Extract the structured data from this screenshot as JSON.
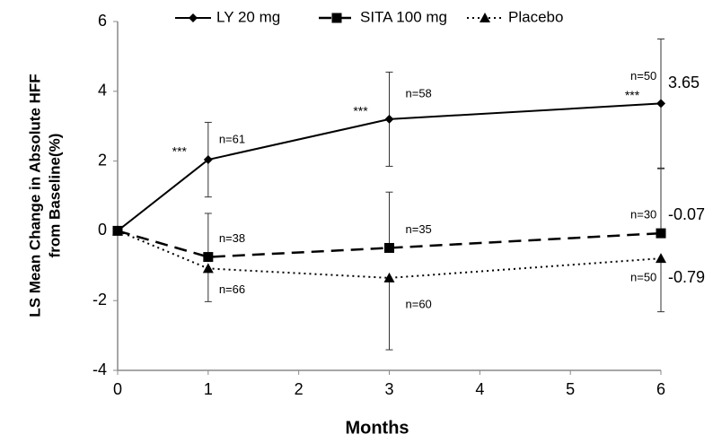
{
  "chart_data": {
    "type": "line",
    "x_label": "Months",
    "y_label": [
      "LS Mean Change in Absolute HFF",
      "from Baseline(%)"
    ],
    "x": [
      0,
      1,
      3,
      6
    ],
    "xlim": [
      0,
      6
    ],
    "xticks": [
      0,
      1,
      2,
      3,
      4,
      5,
      6
    ],
    "ylim": [
      -4,
      6
    ],
    "yticks": [
      -4,
      -2,
      0,
      2,
      4,
      6
    ],
    "grid": false,
    "legend": "top",
    "series": [
      {
        "name": "LY 20 mg",
        "color": "#000000",
        "dash": "solid",
        "marker": "diamond",
        "error_side": "both",
        "values": [
          0,
          2.04,
          3.2,
          3.65
        ],
        "errors": [
          null,
          1.07,
          1.35,
          1.85
        ],
        "n_labels": [
          null,
          "n=61",
          "n=58",
          "n=50"
        ],
        "significance": [
          null,
          "***",
          "***",
          "***"
        ]
      },
      {
        "name": "SITA 100 mg",
        "color": "#000000",
        "dash": "dashed",
        "marker": "square",
        "error_side": "upper",
        "values": [
          0,
          -0.75,
          -0.49,
          -0.07
        ],
        "errors": [
          null,
          1.25,
          1.6,
          1.85
        ],
        "n_labels": [
          null,
          "n=38",
          "n=35",
          "n=30"
        ]
      },
      {
        "name": "Placebo",
        "color": "#000000",
        "dash": "dotted",
        "marker": "triangle",
        "error_side": "lower",
        "values": [
          0,
          -1.08,
          -1.35,
          -0.79
        ],
        "errors": [
          null,
          0.95,
          2.06,
          1.53
        ],
        "n_labels": [
          null,
          "n=66",
          "n=60",
          "n=50"
        ]
      }
    ]
  }
}
